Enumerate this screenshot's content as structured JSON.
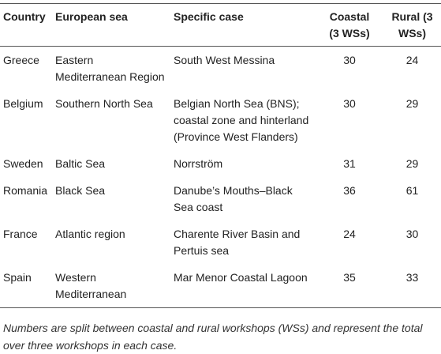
{
  "table": {
    "header": [
      "Country",
      "European sea",
      "Specific case",
      "Coastal (3 WSs)",
      "Rural (3 WSs)"
    ],
    "rows": [
      [
        "Greece",
        "Eastern Mediterranean Region",
        "South West Messina",
        30,
        24
      ],
      [
        "Belgium",
        "Southern North Sea",
        "Belgian North Sea (BNS); coastal zone and hinterland (Province West Flanders)",
        30,
        29
      ],
      [
        "Sweden",
        "Baltic Sea",
        "Norrström",
        31,
        29
      ],
      [
        "Romania",
        "Black Sea",
        "Danube’s Mouths–Black Sea coast",
        36,
        61
      ],
      [
        "France",
        "Atlantic region",
        "Charente River Basin and Pertuis sea",
        24,
        30
      ],
      [
        "Spain",
        "Western Mediterranean",
        "Mar Menor Coastal Lagoon",
        35,
        33
      ]
    ]
  },
  "footnote": "Numbers are split between coastal and rural workshops (WSs) and represent the total over three workshops in each case."
}
